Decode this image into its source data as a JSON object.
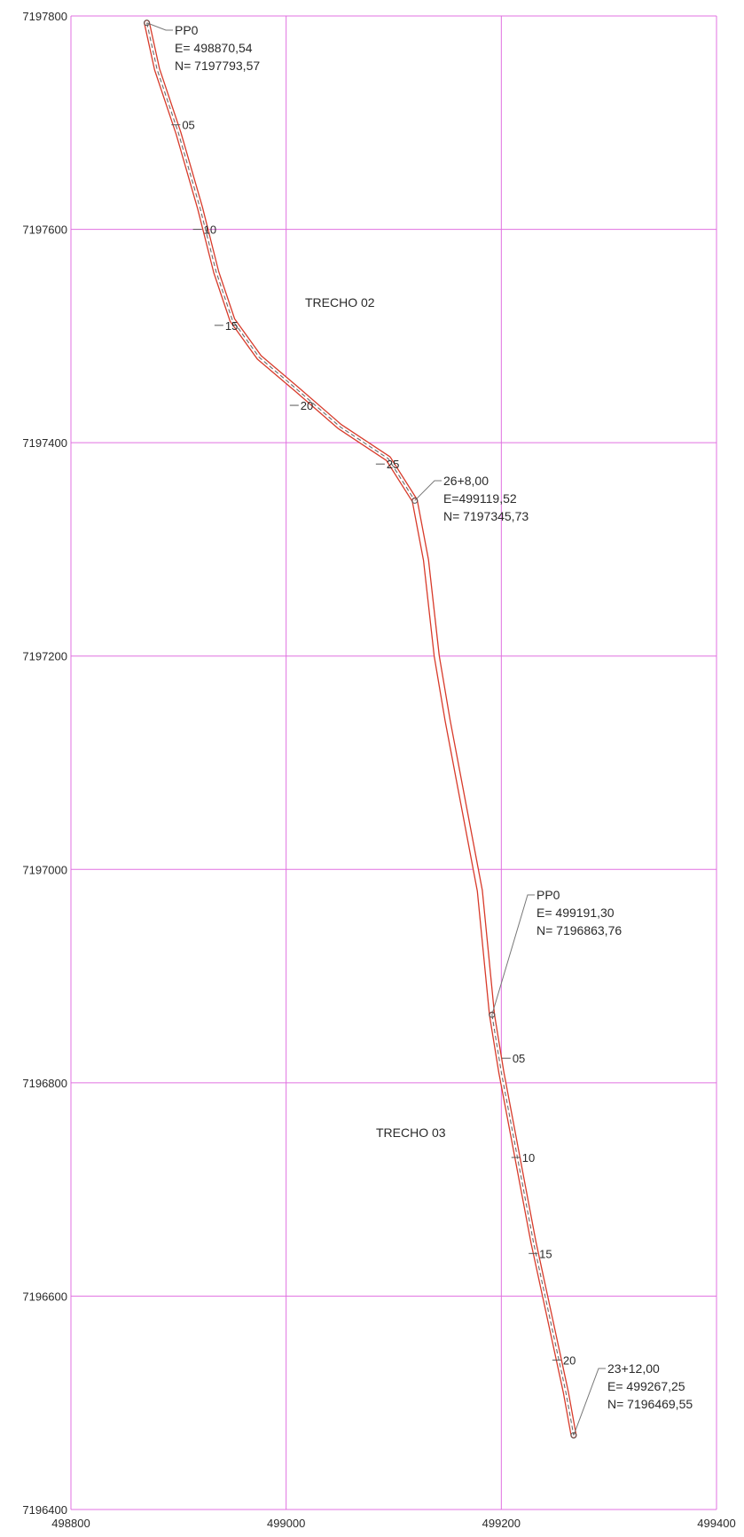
{
  "map": {
    "grid_color": "#e070e0",
    "road_color": "#d83a2a",
    "road_edge_color": "#6a6a6a",
    "x_axis": {
      "ticks": [
        {
          "value": 498800,
          "label": "498800"
        },
        {
          "value": 499000,
          "label": "499000"
        },
        {
          "value": 499200,
          "label": "499200"
        },
        {
          "value": 499400,
          "label": "499400"
        }
      ]
    },
    "y_axis": {
      "ticks": [
        {
          "value": 7197800,
          "label": "7197800"
        },
        {
          "value": 7197600,
          "label": "7197600"
        },
        {
          "value": 7197400,
          "label": "7197400"
        },
        {
          "value": 7197200,
          "label": "7197200"
        },
        {
          "value": 7197000,
          "label": "7197000"
        },
        {
          "value": 7196800,
          "label": "7196800"
        },
        {
          "value": 7196600,
          "label": "7196600"
        },
        {
          "value": 7196400,
          "label": "7196400"
        }
      ]
    },
    "section_labels": {
      "trecho_02": "TRECHO 02",
      "trecho_03": "TRECHO 03"
    },
    "callouts": {
      "start_02": {
        "station": "PP0",
        "east": "E= 498870,54",
        "north": "N= 7197793,57"
      },
      "end_02": {
        "station": "26+8,00",
        "east": "E=499119,52",
        "north": "N= 7197345,73"
      },
      "start_03": {
        "station": "PP0",
        "east": "E= 499191,30",
        "north": "N= 7196863,76"
      },
      "end_03": {
        "station": "23+12,00",
        "east": "E= 499267,25",
        "north": "N= 7196469,55"
      }
    },
    "stations_02": [
      {
        "label": "05",
        "e": 498900,
        "n": 7197698
      },
      {
        "label": "10",
        "e": 498920,
        "n": 7197600
      },
      {
        "label": "15",
        "e": 498940,
        "n": 7197510
      },
      {
        "label": "20",
        "e": 499010,
        "n": 7197435
      },
      {
        "label": "25",
        "e": 499090,
        "n": 7197380
      }
    ],
    "stations_03": [
      {
        "label": "05",
        "e": 499207,
        "n": 7196823
      },
      {
        "label": "10",
        "e": 499216,
        "n": 7196730
      },
      {
        "label": "15",
        "e": 499232,
        "n": 7196640
      },
      {
        "label": "20",
        "e": 499254,
        "n": 7196540
      }
    ],
    "alignment_02": [
      {
        "e": 498870.54,
        "n": 7197793.57
      },
      {
        "e": 498880,
        "n": 7197750
      },
      {
        "e": 498900,
        "n": 7197690
      },
      {
        "e": 498920,
        "n": 7197620
      },
      {
        "e": 498935,
        "n": 7197560
      },
      {
        "e": 498950,
        "n": 7197515
      },
      {
        "e": 498975,
        "n": 7197480
      },
      {
        "e": 499010,
        "n": 7197450
      },
      {
        "e": 499050,
        "n": 7197415
      },
      {
        "e": 499095,
        "n": 7197385
      },
      {
        "e": 499119.52,
        "n": 7197345.73
      }
    ],
    "connector": [
      {
        "e": 499119.52,
        "n": 7197345.73
      },
      {
        "e": 499130,
        "n": 7197290
      },
      {
        "e": 499140,
        "n": 7197200
      },
      {
        "e": 499150,
        "n": 7197140
      },
      {
        "e": 499165,
        "n": 7197060
      },
      {
        "e": 499180,
        "n": 7196980
      },
      {
        "e": 499191.3,
        "n": 7196863.76
      }
    ],
    "alignment_03": [
      {
        "e": 499191.3,
        "n": 7196863.76
      },
      {
        "e": 499200,
        "n": 7196810
      },
      {
        "e": 499215,
        "n": 7196730
      },
      {
        "e": 499230,
        "n": 7196650
      },
      {
        "e": 499245,
        "n": 7196580
      },
      {
        "e": 499260,
        "n": 7196510
      },
      {
        "e": 499267.25,
        "n": 7196469.55
      }
    ]
  }
}
